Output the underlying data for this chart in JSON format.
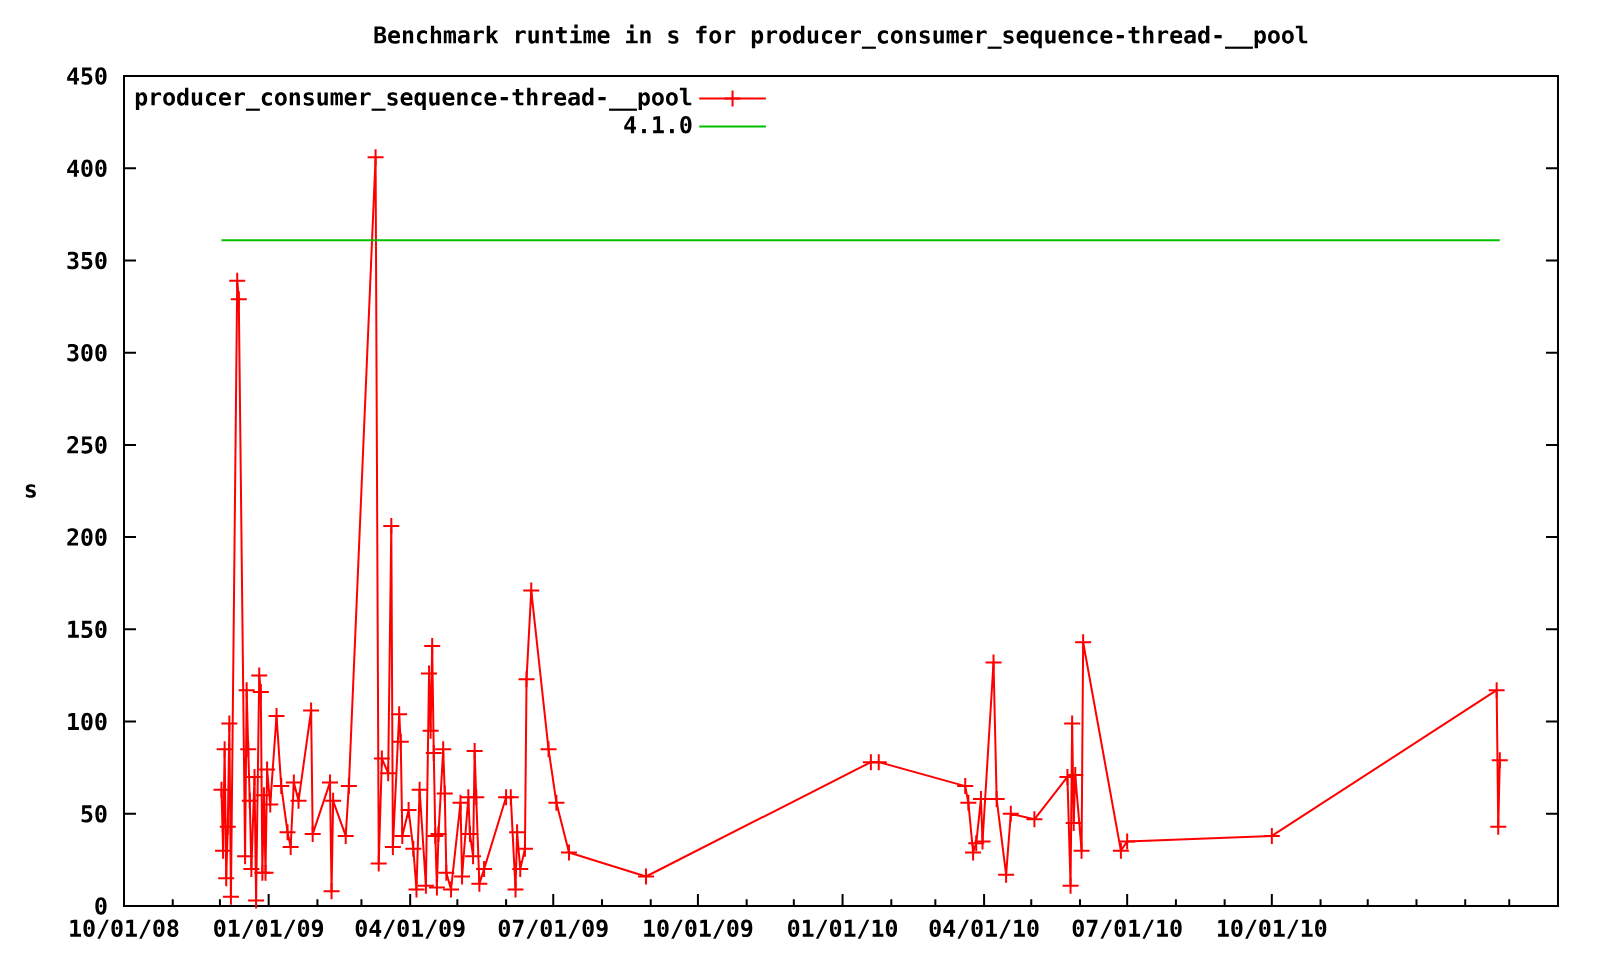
{
  "chart_data": {
    "type": "line",
    "title": "Benchmark runtime in s for producer_consumer_sequence-thread-__pool",
    "ylabel": "s",
    "x": [
      "2008-12-02",
      "2008-12-03",
      "2008-12-04",
      "2008-12-05",
      "2008-12-06",
      "2008-12-07",
      "2008-12-08",
      "2008-12-12",
      "2008-12-13",
      "2008-12-17",
      "2008-12-18",
      "2008-12-19",
      "2008-12-20",
      "2008-12-21",
      "2008-12-23",
      "2008-12-24",
      "2008-12-26",
      "2008-12-27",
      "2008-12-28",
      "2008-12-29",
      "2008-12-30",
      "2008-12-31",
      "2009-01-02",
      "2009-01-06",
      "2009-01-09",
      "2009-01-13",
      "2009-01-15",
      "2009-01-17",
      "2009-01-20",
      "2009-01-28",
      "2009-01-29",
      "2009-02-09",
      "2009-02-10",
      "2009-02-11",
      "2009-02-19",
      "2009-02-21",
      "2009-03-10",
      "2009-03-12",
      "2009-03-14",
      "2009-03-18",
      "2009-03-20",
      "2009-03-21",
      "2009-03-25",
      "2009-03-26",
      "2009-03-27",
      "2009-03-31",
      "2009-04-03",
      "2009-04-05",
      "2009-04-07",
      "2009-04-11",
      "2009-04-13",
      "2009-04-14",
      "2009-04-15",
      "2009-04-16",
      "2009-04-17",
      "2009-04-18",
      "2009-04-19",
      "2009-04-22",
      "2009-04-23",
      "2009-04-24",
      "2009-04-27",
      "2009-05-03",
      "2009-05-04",
      "2009-05-08",
      "2009-05-09",
      "2009-05-11",
      "2009-05-12",
      "2009-05-13",
      "2009-05-15",
      "2009-05-18",
      "2009-06-01",
      "2009-06-04",
      "2009-06-07",
      "2009-06-08",
      "2009-06-10",
      "2009-06-13",
      "2009-06-14",
      "2009-06-17",
      "2009-06-28",
      "2009-07-03",
      "2009-07-11",
      "2009-08-29",
      "2010-01-19",
      "2010-01-24",
      "2010-03-20",
      "2010-03-22",
      "2010-03-25",
      "2010-03-27",
      "2010-03-30",
      "2010-03-31",
      "2010-04-07",
      "2010-04-09",
      "2010-04-15",
      "2010-04-18",
      "2010-05-03",
      "2010-05-24",
      "2010-05-26",
      "2010-05-27",
      "2010-05-28",
      "2010-05-29",
      "2010-06-02",
      "2010-06-03",
      "2010-06-27",
      "2010-07-01",
      "2010-10-01",
      "2011-02-21",
      "2011-02-22",
      "2011-02-23"
    ],
    "series": [
      {
        "name": "producer_consumer_sequence-thread-__pool",
        "color": "#ff0000",
        "values": [
          63,
          30,
          85,
          15,
          43,
          99,
          5,
          339,
          329,
          27,
          117,
          85,
          57,
          20,
          70,
          3,
          125,
          116,
          18,
          60,
          18,
          74,
          55,
          103,
          65,
          40,
          32,
          67,
          57,
          106,
          39,
          67,
          8,
          57,
          38,
          65,
          406,
          23,
          80,
          72,
          206,
          32,
          104,
          89,
          38,
          52,
          31,
          9,
          63,
          11,
          126,
          95,
          141,
          83,
          38,
          10,
          39,
          85,
          61,
          18,
          9,
          56,
          16,
          59,
          39,
          27,
          84,
          59,
          12,
          20,
          59,
          59,
          9,
          40,
          20,
          31,
          123,
          171,
          85,
          56,
          29,
          16,
          78,
          78,
          65,
          56,
          29,
          34,
          58,
          35,
          132,
          58,
          17,
          50,
          47,
          70,
          11,
          99,
          45,
          71,
          30,
          143,
          30,
          35,
          38,
          117,
          43,
          79
        ]
      },
      {
        "name": "4.1.0",
        "color": "#00c000",
        "type": "line",
        "marker": "none",
        "x": [
          "2008-12-02",
          "2011-02-23"
        ],
        "values": [
          361,
          361
        ]
      }
    ],
    "xlim": [
      "2008-10-01",
      "2011-04-01"
    ],
    "xticks": [
      {
        "value": "2008-10-01",
        "label": "10/01/08"
      },
      {
        "value": "2008-11-01",
        "label": null
      },
      {
        "value": "2008-12-01",
        "label": null
      },
      {
        "value": "2009-01-01",
        "label": "01/01/09"
      },
      {
        "value": "2009-02-01",
        "label": null
      },
      {
        "value": "2009-03-01",
        "label": null
      },
      {
        "value": "2009-04-01",
        "label": "04/01/09"
      },
      {
        "value": "2009-05-01",
        "label": null
      },
      {
        "value": "2009-06-01",
        "label": null
      },
      {
        "value": "2009-07-01",
        "label": "07/01/09"
      },
      {
        "value": "2009-08-01",
        "label": null
      },
      {
        "value": "2009-09-01",
        "label": null
      },
      {
        "value": "2009-10-01",
        "label": "10/01/09"
      },
      {
        "value": "2009-11-01",
        "label": null
      },
      {
        "value": "2009-12-01",
        "label": null
      },
      {
        "value": "2010-01-01",
        "label": "01/01/10"
      },
      {
        "value": "2010-02-01",
        "label": null
      },
      {
        "value": "2010-03-01",
        "label": null
      },
      {
        "value": "2010-04-01",
        "label": "04/01/10"
      },
      {
        "value": "2010-05-01",
        "label": null
      },
      {
        "value": "2010-06-01",
        "label": null
      },
      {
        "value": "2010-07-01",
        "label": "07/01/10"
      },
      {
        "value": "2010-08-01",
        "label": null
      },
      {
        "value": "2010-09-01",
        "label": null
      },
      {
        "value": "2010-10-01",
        "label": "10/01/10"
      },
      {
        "value": "2010-11-01",
        "label": null
      },
      {
        "value": "2010-12-01",
        "label": null
      },
      {
        "value": "2011-01-01",
        "label": null
      },
      {
        "value": "2011-02-01",
        "label": null
      },
      {
        "value": "2011-03-01",
        "label": null
      }
    ],
    "ylim": [
      0,
      450
    ],
    "yticks": [
      0,
      50,
      100,
      150,
      200,
      250,
      300,
      350,
      400,
      450
    ],
    "legend": "top left",
    "marker": "cross"
  }
}
